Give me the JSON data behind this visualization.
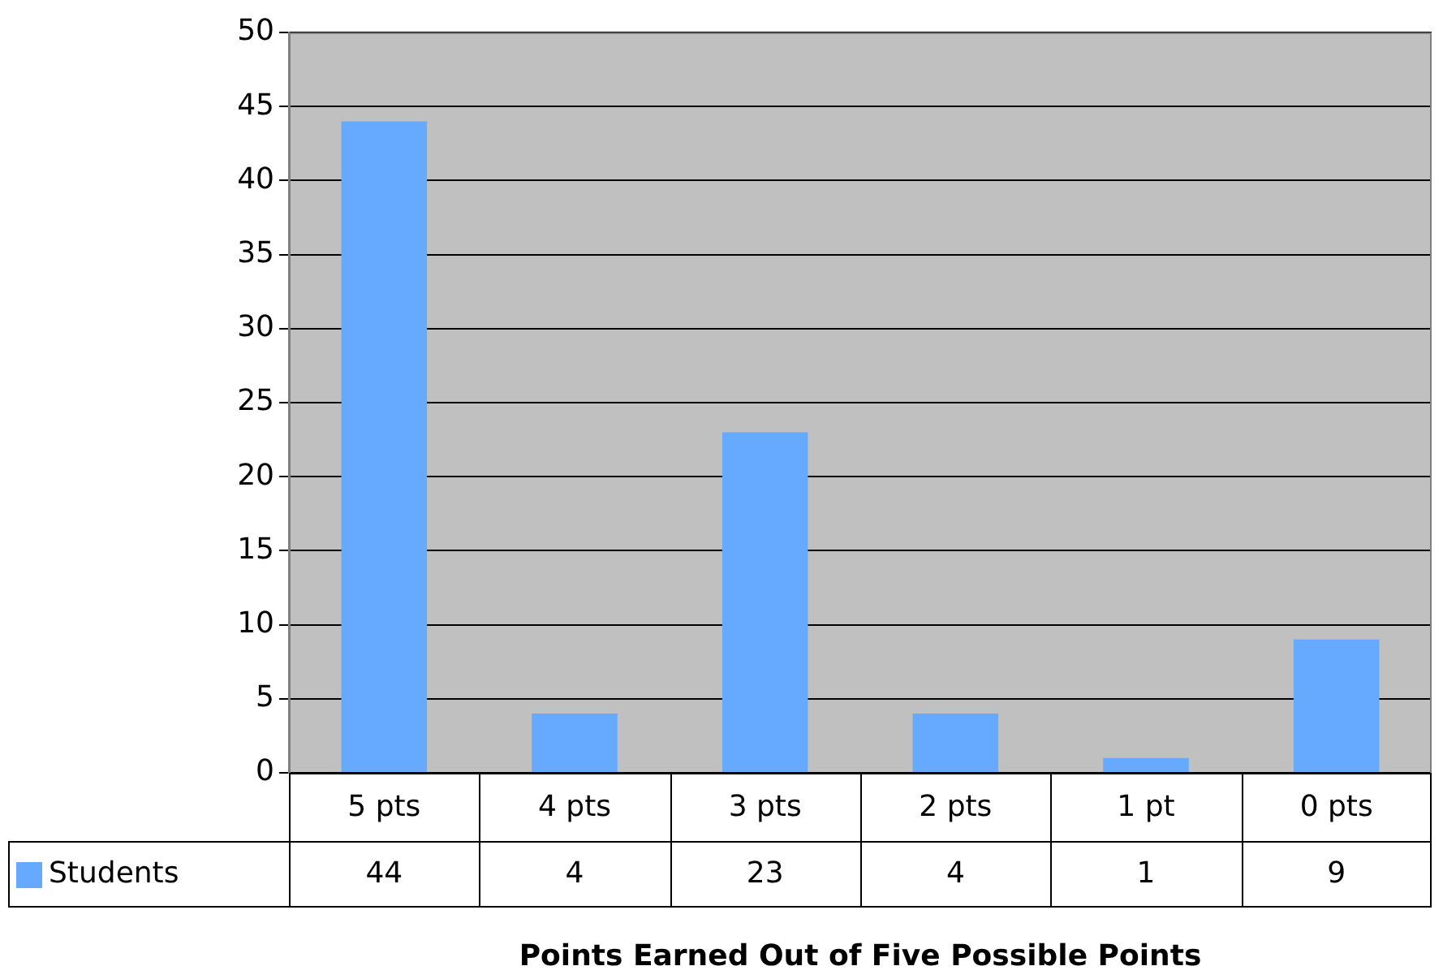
{
  "chart_data": {
    "type": "bar",
    "xlabel": "Points Earned Out of Five Possible Points",
    "categories": [
      "5 pts",
      "4 pts",
      "3 pts",
      "2 pts",
      "1 pt",
      "0 pts"
    ],
    "series": [
      {
        "name": "Students",
        "color": "#66aaff",
        "values": [
          44,
          4,
          23,
          4,
          1,
          9
        ]
      }
    ],
    "ylim": [
      0,
      50
    ],
    "yticks": [
      0,
      5,
      10,
      15,
      20,
      25,
      30,
      35,
      40,
      45,
      50
    ],
    "grid": "y",
    "legend": "bottom",
    "data_labels": true
  }
}
